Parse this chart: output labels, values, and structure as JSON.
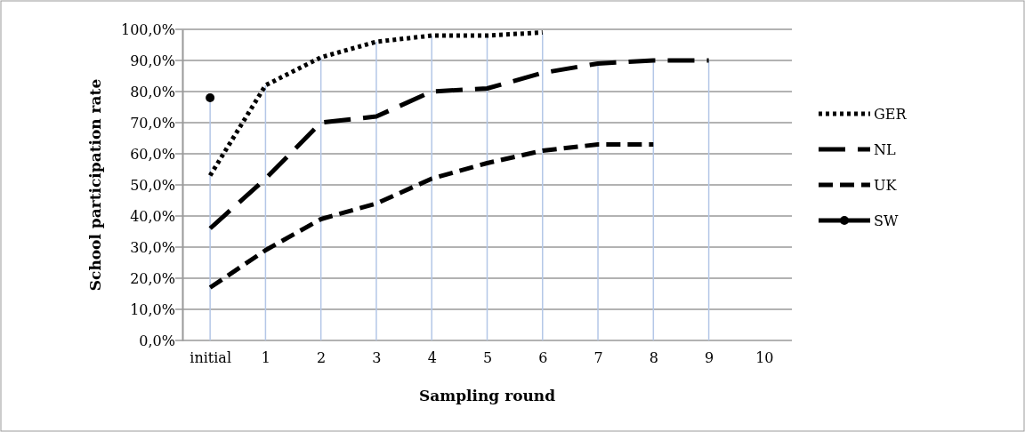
{
  "chart_data": {
    "type": "line",
    "xlabel": "Sampling round",
    "ylabel": "School participation rate",
    "categories": [
      "initial",
      "1",
      "2",
      "3",
      "4",
      "5",
      "6",
      "7",
      "8",
      "9",
      "10"
    ],
    "ylim": [
      0,
      100
    ],
    "yticks": [
      {
        "value": 0,
        "label": "0,0%"
      },
      {
        "value": 10,
        "label": "10,0%"
      },
      {
        "value": 20,
        "label": "20,0%"
      },
      {
        "value": 30,
        "label": "30,0%"
      },
      {
        "value": 40,
        "label": "40,0%"
      },
      {
        "value": 50,
        "label": "50,0%"
      },
      {
        "value": 60,
        "label": "60,0%"
      },
      {
        "value": 70,
        "label": "70,0%"
      },
      {
        "value": 80,
        "label": "80,0%"
      },
      {
        "value": 90,
        "label": "90,0%"
      },
      {
        "value": 100,
        "label": "100,0%"
      }
    ],
    "grid": true,
    "legend": "right",
    "series": [
      {
        "name": "GER",
        "color": "#000000",
        "line_style": "dotted",
        "marker": "none",
        "values": [
          53,
          82,
          91,
          96,
          98,
          98,
          99,
          null,
          null,
          null,
          null
        ]
      },
      {
        "name": "NL",
        "color": "#000000",
        "line_style": "dashed",
        "marker": "none",
        "values": [
          36,
          52,
          70,
          72,
          80,
          81,
          86,
          89,
          90,
          90,
          null
        ]
      },
      {
        "name": "UK",
        "color": "#000000",
        "line_style": "dashed",
        "marker": "none",
        "values": [
          17,
          29,
          39,
          44,
          52,
          57,
          61,
          63,
          63,
          null,
          null
        ]
      },
      {
        "name": "SW",
        "color": "#000000",
        "line_style": "solid",
        "marker": "circle",
        "values": [
          78,
          null,
          null,
          null,
          null,
          null,
          null,
          null,
          null,
          null,
          null
        ]
      }
    ]
  }
}
